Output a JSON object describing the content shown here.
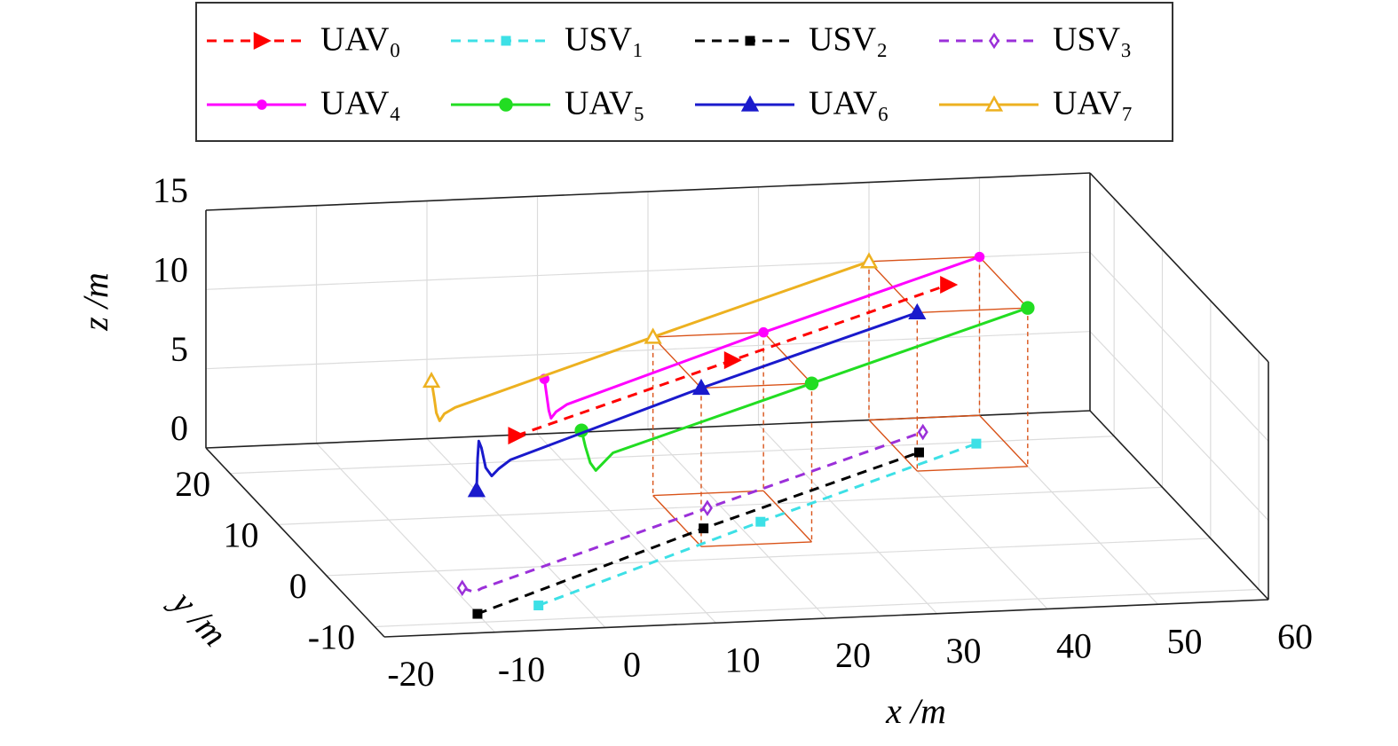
{
  "chart_data": {
    "type": "line3d",
    "xlabel": "x /m",
    "ylabel": "y /m",
    "zlabel": "z /m",
    "xlim": [
      -20,
      60
    ],
    "ylim": [
      -12,
      25
    ],
    "zlim": [
      0,
      15
    ],
    "xticks": [
      -20,
      -10,
      0,
      10,
      20,
      30,
      40,
      50,
      60
    ],
    "yticks": [
      -10,
      0,
      10,
      20
    ],
    "zticks": [
      0,
      5,
      10,
      15
    ],
    "grid": true,
    "formation_color": "#d95319",
    "series": [
      {
        "name": "UAV₀",
        "color": "#ff0000",
        "dashed": true,
        "marker": ">",
        "marker_size": 8,
        "marker_filled": true,
        "x": [
          -5,
          20,
          45
        ],
        "y": [
          -5,
          7.5,
          20
        ],
        "z": [
          10,
          10,
          10
        ]
      },
      {
        "name": "USV₁",
        "color": "#3de0e6",
        "dashed": true,
        "marker": "s",
        "marker_size": 5,
        "marker_filled": true,
        "x": [
          -4,
          22.2,
          47.4
        ],
        "y": [
          -7.3,
          6.7,
          19.7
        ],
        "z": [
          0,
          0,
          0
        ]
      },
      {
        "name": "USV₂",
        "color": "#000000",
        "dashed": true,
        "marker": "s",
        "marker_size": 5,
        "marker_filled": true,
        "x": [
          -10,
          16.7,
          41.7
        ],
        "y": [
          -8.4,
          5.9,
          18.5
        ],
        "z": [
          0,
          0,
          0
        ]
      },
      {
        "name": "USV₃",
        "color": "#9b30d9",
        "dashed": true,
        "marker": "d",
        "marker_size": 7,
        "marker_filled": false,
        "x": [
          -9.2,
          -8.5,
          -7.5,
          18.7,
          43.7
        ],
        "y": [
          -3.4,
          -4.3,
          -3.6,
          9.7,
          22.3
        ],
        "z": [
          0,
          0,
          0,
          0,
          0
        ]
      },
      {
        "name": "UAV₄",
        "color": "#ff00ff",
        "dashed": false,
        "marker": "o",
        "marker_size": 4.5,
        "marker_filled": true,
        "x": [
          -0.5,
          -0.3,
          -0.1,
          0.1,
          0.7,
          2,
          25,
          50
        ],
        "y": [
          -0.5,
          -0.5,
          -0.5,
          -0.5,
          -0.2,
          0.5,
          12.5,
          25
        ],
        "z": [
          12,
          11,
          10,
          9.5,
          9.8,
          10,
          10,
          10
        ]
      },
      {
        "name": "UAV₅",
        "color": "#22dd22",
        "dashed": false,
        "marker": "o",
        "marker_size": 6.5,
        "marker_filled": true,
        "x": [
          -1.5,
          -1.2,
          -0.8,
          -0.3,
          0.5,
          2,
          25,
          50
        ],
        "y": [
          -10.5,
          -10.6,
          -10.7,
          -10.7,
          -10.3,
          -9,
          2.5,
          15
        ],
        "z": [
          12,
          11,
          10,
          9.5,
          9.8,
          10,
          10,
          10
        ]
      },
      {
        "name": "UAV₆",
        "color": "#1a1acc",
        "dashed": false,
        "marker": "^",
        "marker_size": 8,
        "marker_filled": true,
        "x": [
          -11,
          -10.9,
          -10.8,
          -10.6,
          -10.3,
          -9.8,
          -9,
          -7.5,
          15,
          40
        ],
        "y": [
          -10.5,
          -10.5,
          -10.5,
          -10.6,
          -10.8,
          -10.9,
          -10.5,
          -9.5,
          2.5,
          15
        ],
        "z": [
          8.5,
          10.5,
          11.6,
          11.2,
          10,
          9.5,
          9.8,
          10,
          10,
          10
        ]
      },
      {
        "name": "UAV₇",
        "color": "#edb120",
        "dashed": false,
        "marker": "^",
        "marker_size": 8,
        "marker_filled": false,
        "x": [
          -10.5,
          -10.3,
          -10.1,
          -9.8,
          -9.2,
          -8,
          15,
          40
        ],
        "y": [
          0,
          -0.1,
          -0.1,
          -0.1,
          0.3,
          0.8,
          12.5,
          25
        ],
        "z": [
          12,
          11,
          10,
          9.5,
          9.8,
          10,
          10,
          10
        ]
      }
    ]
  }
}
